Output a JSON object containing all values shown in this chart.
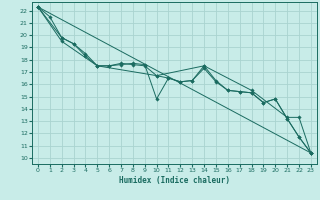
{
  "xlabel": "Humidex (Indice chaleur)",
  "bg_color": "#c8ece8",
  "grid_color": "#aad4d0",
  "line_color": "#1a6b60",
  "xlim": [
    -0.5,
    23.5
  ],
  "ylim": [
    9.5,
    22.7
  ],
  "xticks": [
    0,
    1,
    2,
    3,
    4,
    5,
    6,
    7,
    8,
    9,
    10,
    11,
    12,
    13,
    14,
    15,
    16,
    17,
    18,
    19,
    20,
    21,
    22,
    23
  ],
  "yticks": [
    10,
    11,
    12,
    13,
    14,
    15,
    16,
    17,
    18,
    19,
    20,
    21,
    22
  ],
  "lines": [
    {
      "x": [
        0,
        1,
        2,
        3,
        4,
        5,
        6,
        7,
        8,
        9,
        10,
        11,
        12,
        13,
        14,
        15,
        16,
        17,
        18,
        19,
        20,
        21,
        22,
        23
      ],
      "y": [
        22.3,
        21.5,
        19.8,
        19.3,
        18.5,
        17.5,
        17.5,
        17.6,
        17.7,
        17.6,
        14.8,
        16.5,
        16.2,
        16.3,
        17.5,
        16.3,
        15.5,
        15.4,
        15.3,
        14.5,
        14.8,
        13.2,
        11.7,
        10.4
      ]
    },
    {
      "x": [
        0,
        2,
        3,
        4,
        5,
        6,
        7,
        8,
        9,
        10,
        11,
        12,
        13,
        14,
        15,
        16,
        17,
        18,
        19,
        20,
        21,
        22,
        23
      ],
      "y": [
        22.3,
        19.8,
        19.3,
        18.3,
        17.5,
        17.5,
        17.7,
        17.6,
        17.5,
        16.7,
        16.5,
        16.2,
        16.3,
        17.3,
        16.2,
        15.5,
        15.4,
        15.3,
        14.5,
        14.8,
        13.2,
        11.7,
        10.4
      ]
    },
    {
      "x": [
        0,
        23
      ],
      "y": [
        22.3,
        10.4
      ]
    },
    {
      "x": [
        0,
        2,
        5,
        10,
        14,
        18,
        21,
        22,
        23
      ],
      "y": [
        22.3,
        19.5,
        17.5,
        16.7,
        17.5,
        15.5,
        13.3,
        13.3,
        10.4
      ]
    }
  ]
}
